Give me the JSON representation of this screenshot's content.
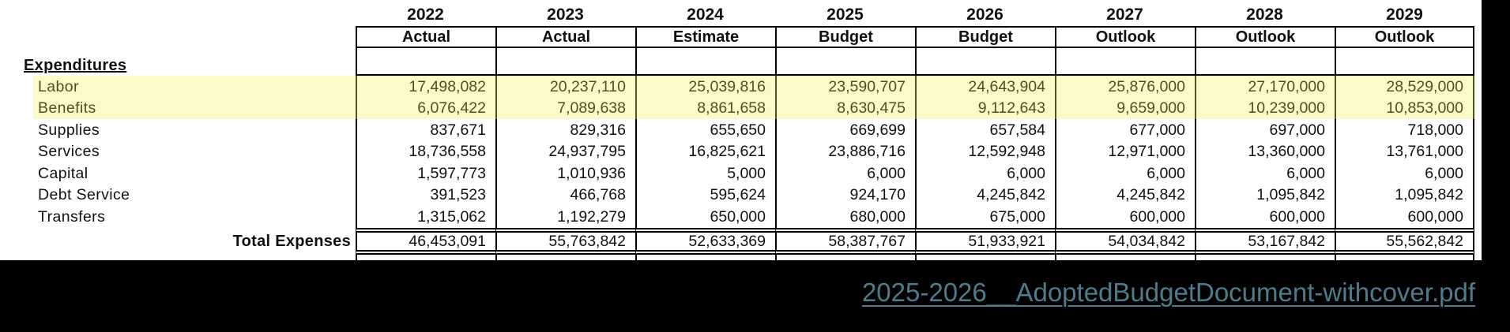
{
  "table": {
    "years": [
      "2022",
      "2023",
      "2024",
      "2025",
      "2026",
      "2027",
      "2028",
      "2029"
    ],
    "col_headers": [
      "Actual",
      "Actual",
      "Estimate",
      "Budget",
      "Budget",
      "Outlook",
      "Outlook",
      "Outlook"
    ],
    "section_label": "Expenditures",
    "rows": [
      {
        "label": "Labor",
        "highlight": true,
        "values": [
          "17,498,082",
          "20,237,110",
          "25,039,816",
          "23,590,707",
          "24,643,904",
          "25,876,000",
          "27,170,000",
          "28,529,000"
        ]
      },
      {
        "label": "Benefits",
        "highlight": true,
        "values": [
          "6,076,422",
          "7,089,638",
          "8,861,658",
          "8,630,475",
          "9,112,643",
          "9,659,000",
          "10,239,000",
          "10,853,000"
        ]
      },
      {
        "label": "Supplies",
        "highlight": false,
        "values": [
          "837,671",
          "829,316",
          "655,650",
          "669,699",
          "657,584",
          "677,000",
          "697,000",
          "718,000"
        ]
      },
      {
        "label": "Services",
        "highlight": false,
        "values": [
          "18,736,558",
          "24,937,795",
          "16,825,621",
          "23,886,716",
          "12,592,948",
          "12,971,000",
          "13,360,000",
          "13,761,000"
        ]
      },
      {
        "label": "Capital",
        "highlight": false,
        "values": [
          "1,597,773",
          "1,010,936",
          "5,000",
          "6,000",
          "6,000",
          "6,000",
          "6,000",
          "6,000"
        ]
      },
      {
        "label": "Debt Service",
        "highlight": false,
        "values": [
          "391,523",
          "466,768",
          "595,624",
          "924,170",
          "4,245,842",
          "4,245,842",
          "1,095,842",
          "1,095,842"
        ]
      },
      {
        "label": "Transfers",
        "highlight": false,
        "values": [
          "1,315,062",
          "1,192,279",
          "650,000",
          "680,000",
          "675,000",
          "600,000",
          "600,000",
          "600,000"
        ]
      }
    ],
    "total_row": {
      "label": "Total Expenses",
      "values": [
        "46,453,091",
        "55,763,842",
        "52,633,369",
        "58,387,767",
        "51,933,921",
        "54,034,842",
        "53,167,842",
        "55,562,842"
      ]
    }
  },
  "footer": {
    "pdf_link": "2025-2026__AdoptedBudgetDocument-withcover.pdf"
  },
  "colors": {
    "highlight_fill": "#FBFBC9",
    "highlight_text": "#4E5418",
    "link_text": "#4D7C8C",
    "table_border": "#000000"
  }
}
